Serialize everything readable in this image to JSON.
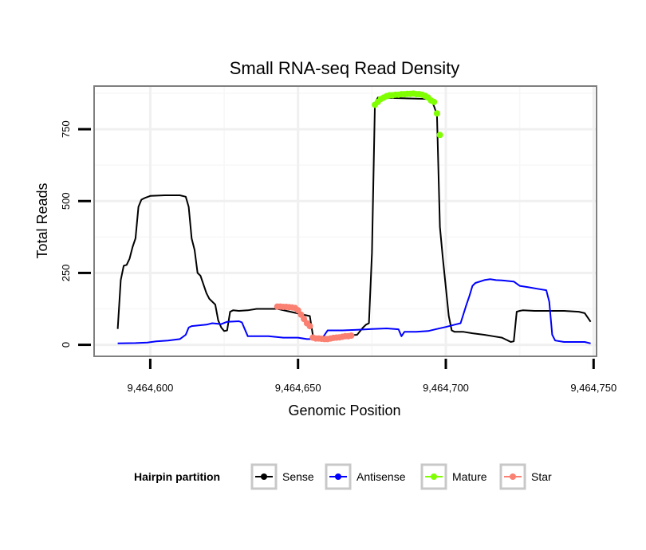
{
  "chart_data": {
    "type": "line",
    "title": "Small RNA-seq Read Density",
    "xlabel": "Genomic Position",
    "ylabel": "Total Reads",
    "xlim": [
      9464581,
      9464751
    ],
    "ylim": [
      -40,
      900
    ],
    "x_ticks": [
      9464600,
      9464650,
      9464700,
      9464750
    ],
    "x_tick_labels": [
      "9,464,600",
      "9,464,650",
      "9,464,700",
      "9,464,750"
    ],
    "y_ticks": [
      0,
      250,
      500,
      750
    ],
    "y_tick_labels": [
      "0",
      "250",
      "500",
      "750"
    ],
    "grid": true,
    "legend": {
      "title": "Hairpin partition",
      "position": "bottom",
      "entries": [
        {
          "name": "Sense",
          "color": "#000000"
        },
        {
          "name": "Antisense",
          "color": "#0000ff"
        },
        {
          "name": "Mature",
          "color": "#7fff00"
        },
        {
          "name": "Star",
          "color": "#fa8072"
        }
      ]
    },
    "series": [
      {
        "name": "Sense",
        "color": "#000000",
        "style": "line",
        "points": [
          [
            9464589,
            55
          ],
          [
            9464590,
            225
          ],
          [
            9464591,
            275
          ],
          [
            9464592,
            278
          ],
          [
            9464593,
            300
          ],
          [
            9464594,
            340
          ],
          [
            9464595,
            370
          ],
          [
            9464596,
            480
          ],
          [
            9464597,
            505
          ],
          [
            9464598,
            510
          ],
          [
            9464600,
            518
          ],
          [
            9464605,
            520
          ],
          [
            9464610,
            520
          ],
          [
            9464612,
            515
          ],
          [
            9464613,
            480
          ],
          [
            9464614,
            370
          ],
          [
            9464615,
            330
          ],
          [
            9464616,
            250
          ],
          [
            9464617,
            240
          ],
          [
            9464618,
            210
          ],
          [
            9464619,
            180
          ],
          [
            9464620,
            160
          ],
          [
            9464621,
            150
          ],
          [
            9464622,
            140
          ],
          [
            9464623,
            85
          ],
          [
            9464624,
            60
          ],
          [
            9464625,
            48
          ],
          [
            9464626,
            50
          ],
          [
            9464627,
            115
          ],
          [
            9464628,
            120
          ],
          [
            9464630,
            118
          ],
          [
            9464633,
            120
          ],
          [
            9464636,
            125
          ],
          [
            9464640,
            125
          ],
          [
            9464643,
            125
          ],
          [
            9464654,
            100
          ],
          [
            9464655,
            35
          ],
          [
            9464656,
            25
          ],
          [
            9464670,
            35
          ],
          [
            9464672,
            60
          ],
          [
            9464673,
            70
          ],
          [
            9464674,
            75
          ],
          [
            9464675,
            320
          ],
          [
            9464676,
            840
          ],
          [
            9464677,
            860
          ],
          [
            9464695,
            855
          ],
          [
            9464696,
            830
          ],
          [
            9464697,
            800
          ],
          [
            9464698,
            410
          ],
          [
            9464699,
            300
          ],
          [
            9464700,
            200
          ],
          [
            9464701,
            100
          ],
          [
            9464702,
            50
          ],
          [
            9464703,
            45
          ],
          [
            9464706,
            45
          ],
          [
            9464709,
            40
          ],
          [
            9464713,
            35
          ],
          [
            9464716,
            30
          ],
          [
            9464719,
            25
          ],
          [
            9464721,
            15
          ],
          [
            9464722,
            10
          ],
          [
            9464723,
            12
          ],
          [
            9464724,
            115
          ],
          [
            9464725,
            118
          ],
          [
            9464726,
            120
          ],
          [
            9464730,
            118
          ],
          [
            9464740,
            118
          ],
          [
            9464745,
            115
          ],
          [
            9464747,
            110
          ],
          [
            9464749,
            80
          ]
        ]
      },
      {
        "name": "Antisense",
        "color": "#0000ff",
        "style": "line",
        "points": [
          [
            9464589,
            5
          ],
          [
            9464595,
            6
          ],
          [
            9464599,
            8
          ],
          [
            9464602,
            12
          ],
          [
            9464606,
            15
          ],
          [
            9464610,
            20
          ],
          [
            9464612,
            35
          ],
          [
            9464613,
            60
          ],
          [
            9464614,
            65
          ],
          [
            9464616,
            67
          ],
          [
            9464619,
            70
          ],
          [
            9464621,
            75
          ],
          [
            9464624,
            72
          ],
          [
            9464626,
            80
          ],
          [
            9464630,
            82
          ],
          [
            9464631,
            78
          ],
          [
            9464633,
            30
          ],
          [
            9464640,
            30
          ],
          [
            9464645,
            25
          ],
          [
            9464650,
            25
          ],
          [
            9464653,
            20
          ],
          [
            9464658,
            20
          ],
          [
            9464660,
            50
          ],
          [
            9464665,
            50
          ],
          [
            9464670,
            52
          ],
          [
            9464675,
            55
          ],
          [
            9464680,
            57
          ],
          [
            9464684,
            54
          ],
          [
            9464685,
            30
          ],
          [
            9464686,
            45
          ],
          [
            9464690,
            45
          ],
          [
            9464694,
            48
          ],
          [
            9464697,
            55
          ],
          [
            9464700,
            62
          ],
          [
            9464703,
            70
          ],
          [
            9464705,
            75
          ],
          [
            9464707,
            140
          ],
          [
            9464708,
            170
          ],
          [
            9464709,
            205
          ],
          [
            9464710,
            215
          ],
          [
            9464713,
            225
          ],
          [
            9464715,
            228
          ],
          [
            9464717,
            225
          ],
          [
            9464719,
            224
          ],
          [
            9464721,
            222
          ],
          [
            9464723,
            220
          ],
          [
            9464725,
            205
          ],
          [
            9464728,
            200
          ],
          [
            9464731,
            195
          ],
          [
            9464734,
            190
          ],
          [
            9464735,
            150
          ],
          [
            9464736,
            35
          ],
          [
            9464737,
            15
          ],
          [
            9464740,
            10
          ],
          [
            9464745,
            10
          ],
          [
            9464747,
            10
          ],
          [
            9464749,
            5
          ]
        ]
      },
      {
        "name": "Mature",
        "color": "#7fff00",
        "style": "points",
        "points": [
          [
            9464676,
            835
          ],
          [
            9464677,
            845
          ],
          [
            9464678,
            855
          ],
          [
            9464679,
            860
          ],
          [
            9464680,
            865
          ],
          [
            9464681,
            868
          ],
          [
            9464682,
            868
          ],
          [
            9464683,
            870
          ],
          [
            9464684,
            870
          ],
          [
            9464685,
            872
          ],
          [
            9464686,
            872
          ],
          [
            9464687,
            873
          ],
          [
            9464688,
            873
          ],
          [
            9464689,
            874
          ],
          [
            9464690,
            872
          ],
          [
            9464691,
            872
          ],
          [
            9464692,
            870
          ],
          [
            9464693,
            866
          ],
          [
            9464694,
            860
          ],
          [
            9464695,
            850
          ],
          [
            9464696,
            845
          ],
          [
            9464697,
            805
          ],
          [
            9464698,
            730
          ]
        ]
      },
      {
        "name": "Star",
        "color": "#fa8072",
        "style": "points",
        "points": [
          [
            9464643,
            133
          ],
          [
            9464644,
            133
          ],
          [
            9464645,
            132
          ],
          [
            9464646,
            132
          ],
          [
            9464647,
            131
          ],
          [
            9464648,
            130
          ],
          [
            9464649,
            128
          ],
          [
            9464650,
            120
          ],
          [
            9464651,
            105
          ],
          [
            9464652,
            90
          ],
          [
            9464653,
            75
          ],
          [
            9464654,
            65
          ],
          [
            9464655,
            25
          ],
          [
            9464656,
            22
          ],
          [
            9464657,
            22
          ],
          [
            9464658,
            21
          ],
          [
            9464659,
            20
          ],
          [
            9464660,
            20
          ],
          [
            9464661,
            22
          ],
          [
            9464662,
            24
          ],
          [
            9464663,
            25
          ],
          [
            9464664,
            26
          ],
          [
            9464665,
            28
          ],
          [
            9464666,
            30
          ],
          [
            9464667,
            30
          ],
          [
            9464668,
            32
          ]
        ]
      }
    ]
  }
}
